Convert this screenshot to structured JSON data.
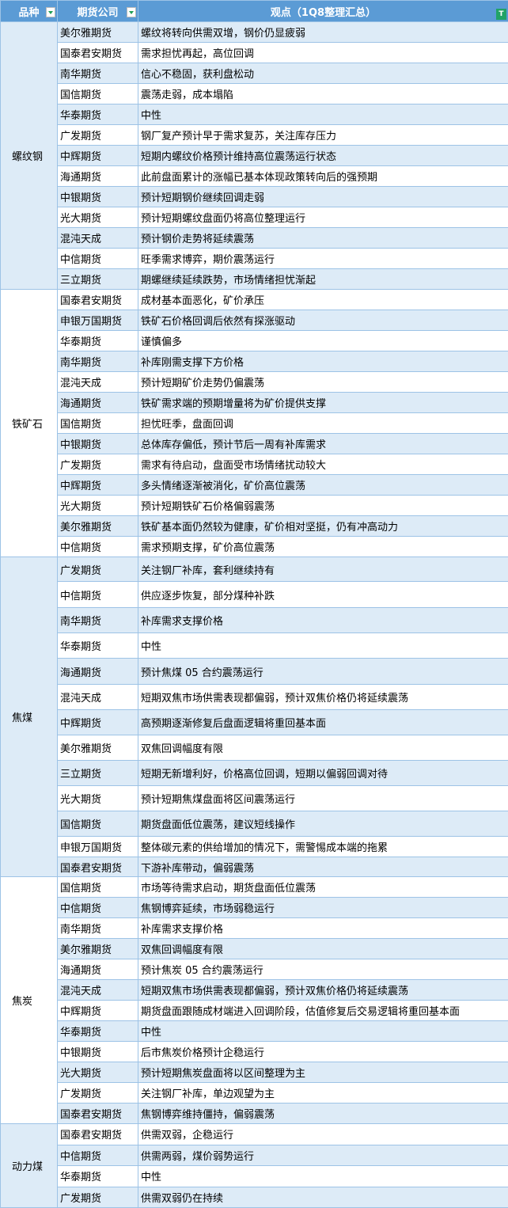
{
  "header": {
    "col1": "品种",
    "col2": "期货公司",
    "col3": "观点（1Q8整理汇总）"
  },
  "groups": [
    {
      "name": "螺纹钢",
      "rows": [
        [
          "美尔雅期货",
          "螺纹将转向供需双增，钢价仍显疲弱"
        ],
        [
          "国泰君安期货",
          "需求担忧再起，高位回调"
        ],
        [
          "南华期货",
          "信心不稳固，获利盘松动"
        ],
        [
          "国信期货",
          "震荡走弱，成本塌陷"
        ],
        [
          "华泰期货",
          "中性"
        ],
        [
          "广发期货",
          "钢厂复产预计早于需求复苏，关注库存压力"
        ],
        [
          "中辉期货",
          "短期内螺纹价格预计维持高位震荡运行状态"
        ],
        [
          "海通期货",
          "此前盘面累计的涨幅已基本体现政策转向后的强预期"
        ],
        [
          "中银期货",
          "预计短期钢价继续回调走弱"
        ],
        [
          "光大期货",
          "预计短期螺纹盘面仍将高位整理运行"
        ],
        [
          "混沌天成",
          "预计钢价走势将延续震荡"
        ],
        [
          "中信期货",
          "旺季需求博弈，期价震荡运行"
        ],
        [
          "三立期货",
          "期螺继续延续跌势，市场情绪担忧渐起"
        ]
      ]
    },
    {
      "name": "铁矿石",
      "rows": [
        [
          "国泰君安期货",
          "成材基本面恶化，矿价承压"
        ],
        [
          "申银万国期货",
          "铁矿石价格回调后依然有探涨驱动"
        ],
        [
          "华泰期货",
          "谨慎偏多"
        ],
        [
          "南华期货",
          "补库刚需支撑下方价格"
        ],
        [
          "混沌天成",
          "预计短期矿价走势仍偏震荡"
        ],
        [
          "海通期货",
          "铁矿需求端的预期增量将为矿价提供支撑"
        ],
        [
          "国信期货",
          "担忧旺季，盘面回调"
        ],
        [
          "中银期货",
          "总体库存偏低，预计节后一周有补库需求"
        ],
        [
          "广发期货",
          "需求有待启动，盘面受市场情绪扰动较大"
        ],
        [
          "中辉期货",
          "多头情绪逐渐被消化，矿价高位震荡"
        ],
        [
          "光大期货",
          "预计短期铁矿石价格偏弱震荡"
        ],
        [
          "美尔雅期货",
          "铁矿基本面仍然较为健康，矿价相对坚挺，仍有冲高动力"
        ],
        [
          "中信期货",
          "需求预期支撑，矿价高位震荡"
        ]
      ]
    },
    {
      "name": "焦煤",
      "rows": [
        [
          "广发期货",
          "关注钢厂补库，套利继续持有"
        ],
        [
          "中信期货",
          "供应逐步恢复，部分煤种补跌"
        ],
        [
          "南华期货",
          "补库需求支撑价格"
        ],
        [
          "华泰期货",
          "中性"
        ],
        [
          "海通期货",
          "预计焦煤 05 合约震荡运行"
        ],
        [
          "混沌天成",
          "短期双焦市场供需表现都偏弱，预计双焦价格仍将延续震荡"
        ],
        [
          "中辉期货",
          "高预期逐渐修复后盘面逻辑将重回基本面"
        ],
        [
          "美尔雅期货",
          "双焦回调幅度有限"
        ],
        [
          "三立期货",
          "短期无新增利好，价格高位回调，短期以偏弱回调对待"
        ],
        [
          "光大期货",
          "预计短期焦煤盘面将区间震荡运行"
        ],
        [
          "国信期货",
          "期货盘面低位震荡，建议短线操作"
        ],
        [
          "申银万国期货",
          "整体碳元素的供给增加的情况下，需警惕成本端的拖累"
        ],
        [
          "国泰君安期货",
          "下游补库带动，偏弱震荡"
        ]
      ]
    },
    {
      "name": "焦炭",
      "rows": [
        [
          "国信期货",
          "市场等待需求启动，期货盘面低位震荡"
        ],
        [
          "中信期货",
          "焦钢博弈延续，市场弱稳运行"
        ],
        [
          "南华期货",
          "补库需求支撑价格"
        ],
        [
          "美尔雅期货",
          "双焦回调幅度有限"
        ],
        [
          "海通期货",
          "预计焦炭 05 合约震荡运行"
        ],
        [
          "混沌天成",
          "短期双焦市场供需表现都偏弱，预计双焦价格仍将延续震荡"
        ],
        [
          "中辉期货",
          "期货盘面跟随成材端进入回调阶段，估值修复后交易逻辑将重回基本面"
        ],
        [
          "华泰期货",
          "中性"
        ],
        [
          "中银期货",
          "后市焦炭价格预计企稳运行"
        ],
        [
          "光大期货",
          "预计短期焦炭盘面将以区间整理为主"
        ],
        [
          "广发期货",
          "关注钢厂补库，单边观望为主"
        ],
        [
          "国泰君安期货",
          "焦钢博弈维持僵持，偏弱震荡"
        ]
      ]
    },
    {
      "name": "动力煤",
      "rows": [
        [
          "国泰君安期货",
          "供需双弱，企稳运行"
        ],
        [
          "中信期货",
          "供需两弱，煤价弱势运行"
        ],
        [
          "华泰期货",
          "中性"
        ],
        [
          "广发期货",
          "供需双弱仍在持续"
        ]
      ]
    }
  ]
}
